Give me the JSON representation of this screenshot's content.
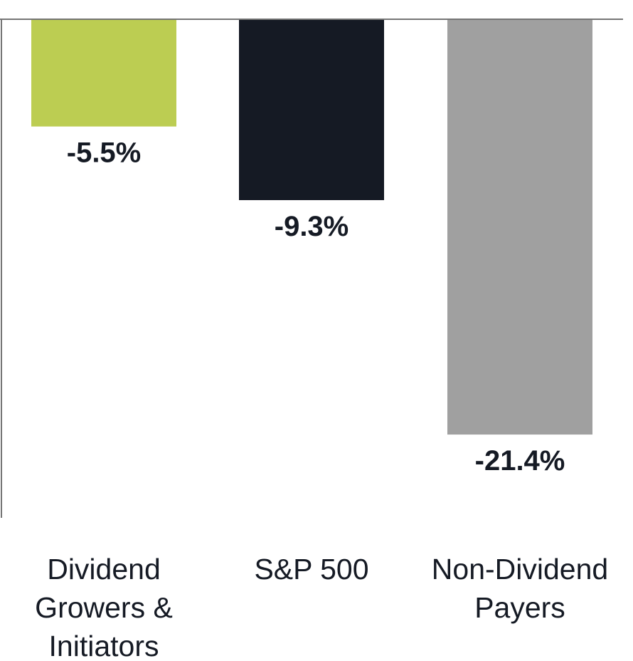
{
  "chart_data": {
    "type": "bar",
    "title": "",
    "xlabel": "",
    "ylabel": "",
    "ylim": [
      -28.0,
      0
    ],
    "grid": false,
    "legend": "none",
    "categories": [
      [
        "Dividend",
        "Growers &",
        "Initiators"
      ],
      [
        "S&P 500"
      ],
      [
        "Non-Dividend",
        "Payers"
      ]
    ],
    "values": [
      -5.5,
      -9.3,
      -21.4
    ],
    "value_labels": [
      "-5.5%",
      "-9.3%",
      "-21.4%"
    ],
    "colors": [
      "#bccd52",
      "#151a24",
      "#a0a0a0"
    ],
    "axis_color": "#757575",
    "label_color": "#151a24"
  }
}
